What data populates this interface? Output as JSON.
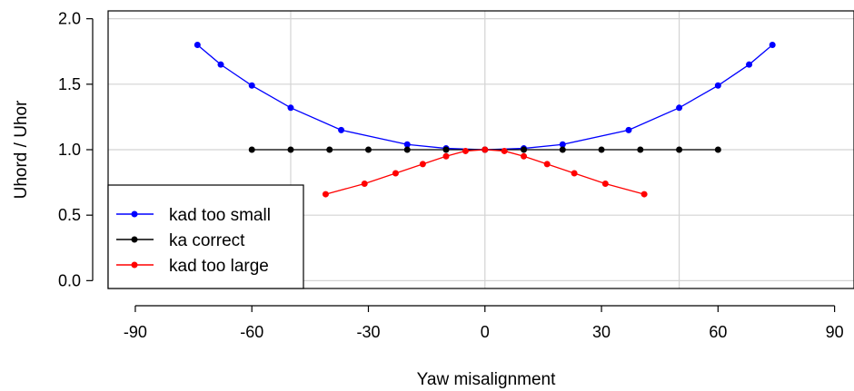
{
  "chart_data": {
    "type": "line",
    "title": "",
    "xlabel": "Yaw misalignment",
    "ylabel": "Uhord / Uhor",
    "xlim": [
      -97,
      95
    ],
    "ylim": [
      -0.06,
      2.06
    ],
    "xticks": [
      -90,
      -60,
      -30,
      0,
      30,
      60,
      90
    ],
    "yticks": [
      0.0,
      0.5,
      1.0,
      1.5,
      2.0
    ],
    "xtick_labels": [
      "-90",
      "-60",
      "-30",
      "0",
      "30",
      "60",
      "90"
    ],
    "ytick_labels": [
      "0.0",
      "0.5",
      "1.0",
      "1.5",
      "2.0"
    ],
    "gridlines_x": [
      -50,
      0,
      50
    ],
    "gridlines_y": [
      0.0,
      0.5,
      1.0,
      1.5,
      2.0
    ],
    "grid": true,
    "legend_position": "bottom-left",
    "series": [
      {
        "name": "kad too small",
        "color": "#0000ff",
        "x": [
          -74,
          -68,
          -60,
          -50,
          -37,
          -20,
          -10,
          0,
          10,
          20,
          37,
          50,
          60,
          68,
          74
        ],
        "y": [
          1.8,
          1.65,
          1.49,
          1.32,
          1.15,
          1.04,
          1.01,
          1.0,
          1.01,
          1.04,
          1.15,
          1.32,
          1.49,
          1.65,
          1.8
        ]
      },
      {
        "name": "ka correct",
        "color": "#000000",
        "x": [
          -60,
          -50,
          -40,
          -30,
          -20,
          -10,
          0,
          10,
          20,
          30,
          40,
          50,
          60
        ],
        "y": [
          1.0,
          1.0,
          1.0,
          1.0,
          1.0,
          1.0,
          1.0,
          1.0,
          1.0,
          1.0,
          1.0,
          1.0,
          1.0
        ]
      },
      {
        "name": "kad too large",
        "color": "#ff0000",
        "x": [
          -41,
          -31,
          -23,
          -16,
          -10,
          -5,
          0,
          5,
          10,
          16,
          23,
          31,
          41
        ],
        "y": [
          0.66,
          0.74,
          0.82,
          0.89,
          0.95,
          0.99,
          1.0,
          0.99,
          0.95,
          0.89,
          0.82,
          0.74,
          0.66
        ]
      }
    ]
  }
}
